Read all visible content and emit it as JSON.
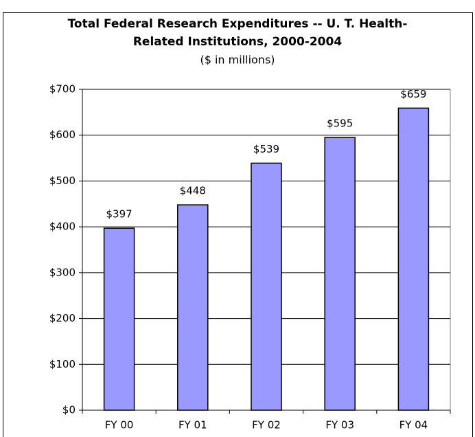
{
  "chart_data": {
    "type": "bar",
    "title": [
      "Total Federal Research Expenditures -- U. T. Health-",
      "Related Institutions, 2000-2004"
    ],
    "subtitle": "($ in millions)",
    "categories": [
      "FY 00",
      "FY 01",
      "FY 02",
      "FY 03",
      "FY 04"
    ],
    "values": [
      397,
      448,
      539,
      595,
      659
    ],
    "value_labels": [
      "$397",
      "$448",
      "$539",
      "$595",
      "$659"
    ],
    "color": "#9999ff",
    "ylim": [
      0,
      700
    ],
    "yticks": [
      {
        "value": 0,
        "label": "$0"
      },
      {
        "value": 100,
        "label": "$100"
      },
      {
        "value": 200,
        "label": "$200"
      },
      {
        "value": 300,
        "label": "$300"
      },
      {
        "value": 400,
        "label": "$400"
      },
      {
        "value": 500,
        "label": "$500"
      },
      {
        "value": 600,
        "label": "$600"
      },
      {
        "value": 700,
        "label": "$700"
      }
    ],
    "grid": true
  }
}
